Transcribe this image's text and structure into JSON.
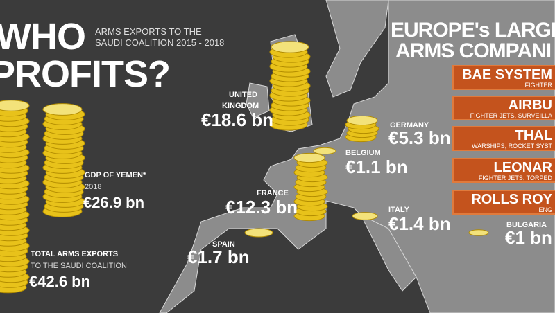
{
  "header": {
    "title_lines": [
      "WHO",
      "PROFITS?"
    ],
    "subtitle_lines": [
      "ARMS EXPORTS TO THE",
      "SAUDI COALITION 2015 - 2018"
    ]
  },
  "comparison": {
    "yemen": {
      "label": "GDP OF YEMEN*",
      "year": "2018",
      "amount": "€26.9 bn"
    },
    "total": {
      "label_lines": [
        "TOTAL ARMS EXPORTS",
        "TO THE SAUDI COALITION"
      ],
      "amount": "€42.6 bn"
    }
  },
  "countries": [
    {
      "name_lines": [
        "UNITED",
        "KINGDOM"
      ],
      "amount": "€18.6 bn"
    },
    {
      "name_lines": [
        "GERMANY"
      ],
      "amount": "€5.3 bn"
    },
    {
      "name_lines": [
        "BELGIUM"
      ],
      "amount": "€1.1 bn"
    },
    {
      "name_lines": [
        "FRANCE"
      ],
      "amount": "€12.3 bn"
    },
    {
      "name_lines": [
        "ITALY"
      ],
      "amount": "€1.4 bn"
    },
    {
      "name_lines": [
        "SPAIN"
      ],
      "amount": "€1.7 bn"
    },
    {
      "name_lines": [
        "BULGARIA"
      ],
      "amount": "€1 bn"
    }
  ],
  "companies": {
    "title_lines": [
      "EUROPE's LARGES",
      "ARMS COMPANI"
    ],
    "items": [
      {
        "name": "BAE SYSTEM",
        "products": "FIGHTER"
      },
      {
        "name": "AIRBU",
        "products": "FIGHTER JETS, SURVEILLA"
      },
      {
        "name": "THAL",
        "products": "WARSHIPS, ROCKET SYST"
      },
      {
        "name": "LEONAR",
        "products": "FIGHTER JETS, TORPED"
      },
      {
        "name": "ROLLS ROY",
        "products": "ENG"
      }
    ]
  }
}
